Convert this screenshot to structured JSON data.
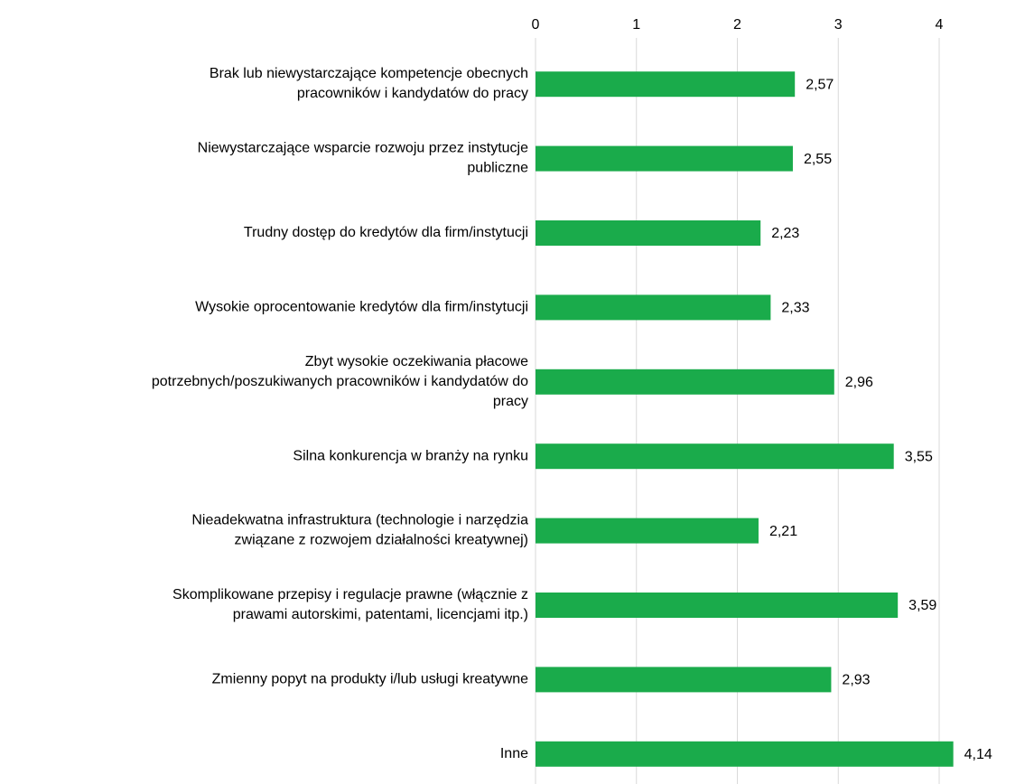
{
  "chart_data": {
    "type": "bar",
    "orientation": "horizontal",
    "categories": [
      "Brak lub niewystarczające kompetencje obecnych\npracowników i kandydatów do pracy",
      "Niewystarczające wsparcie rozwoju przez instytucje\npubliczne",
      "Trudny dostęp do kredytów dla firm/instytucji",
      "Wysokie oprocentowanie kredytów dla firm/instytucji",
      "Zbyt wysokie oczekiwania płacowe\npotrzebnych/poszukiwanych pracowników i kandydatów do\npracy",
      "Silna konkurencja w branży na rynku",
      "Nieadekwatna infrastruktura (technologie i narzędzia\nzwiązane z rozwojem działalności kreatywnej)",
      "Skomplikowane przepisy i regulacje prawne (włącznie z\nprawami autorskimi, patentami, licencjami itp.)",
      "Zmienny popyt na produkty i/lub usługi kreatywne",
      "Inne"
    ],
    "values": [
      2.57,
      2.55,
      2.23,
      2.33,
      2.96,
      3.55,
      2.21,
      3.59,
      2.93,
      4.14
    ],
    "value_labels": [
      "2,57",
      "2,55",
      "2,23",
      "2,33",
      "2,96",
      "3,55",
      "2,21",
      "3,59",
      "2,93",
      "4,14"
    ],
    "color": "#1aab4b",
    "xlim": [
      0,
      4
    ],
    "xticks": [
      0,
      1,
      2,
      3,
      4
    ],
    "grid": true,
    "axis_position": "top"
  }
}
